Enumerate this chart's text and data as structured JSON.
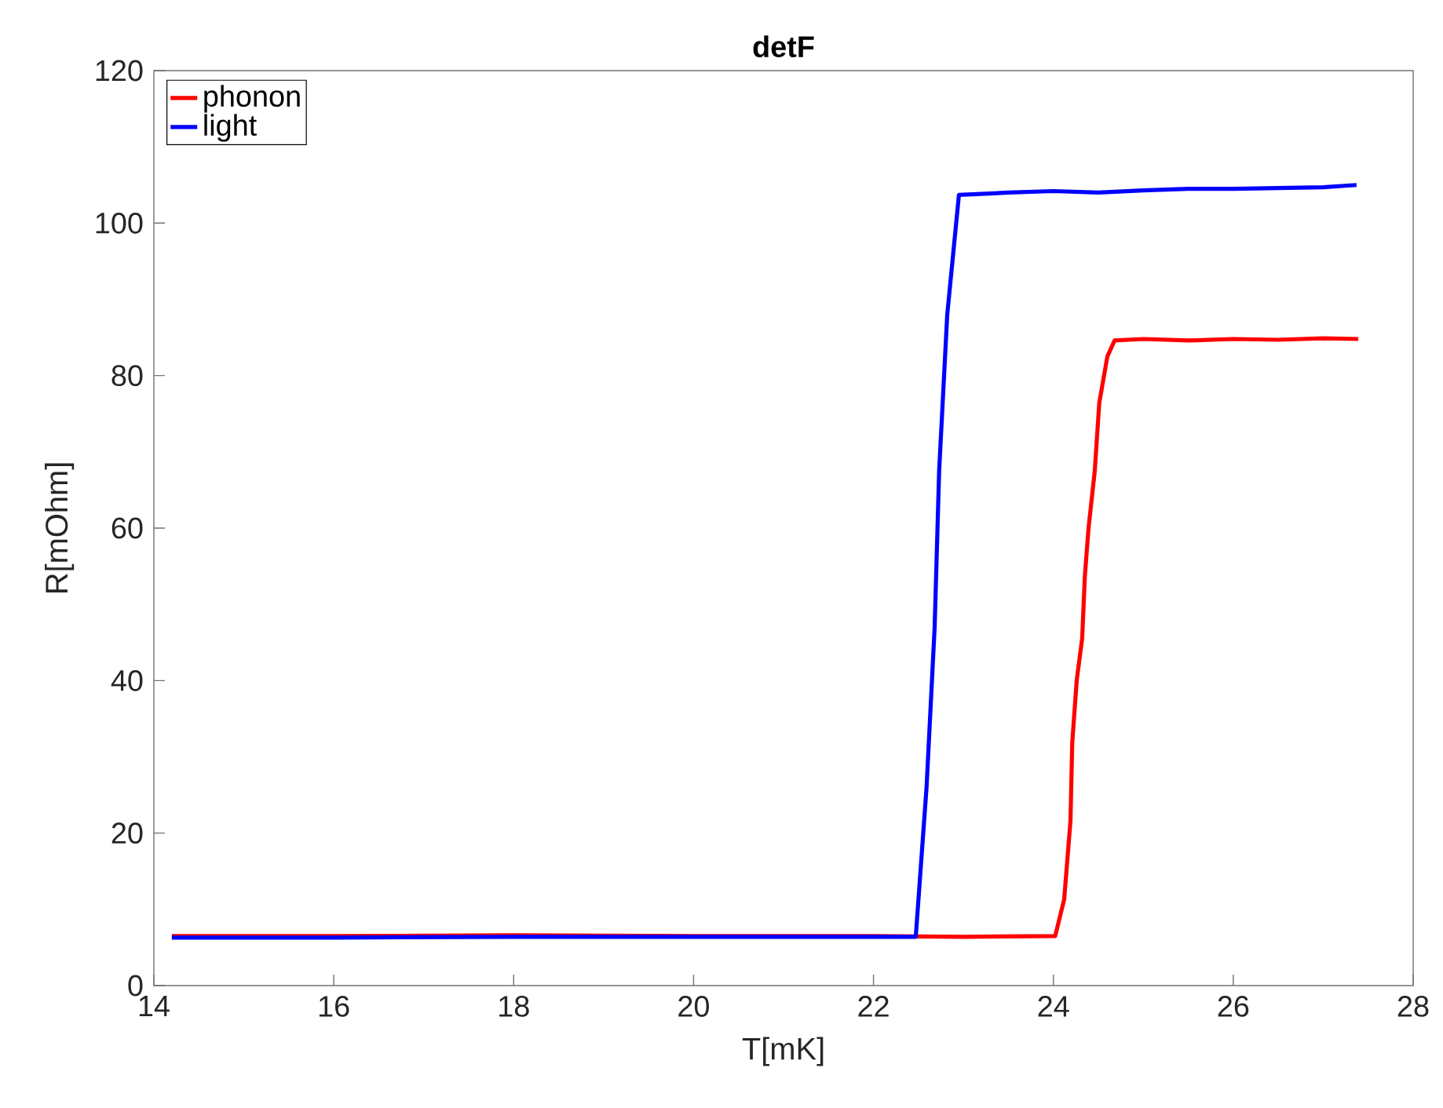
{
  "chart_data": {
    "type": "line",
    "title": "detF",
    "xlabel": "T[mK]",
    "ylabel": "R[mOhm]",
    "xlim": [
      14,
      28
    ],
    "ylim": [
      0,
      120
    ],
    "xticks": [
      14,
      16,
      18,
      20,
      22,
      24,
      26,
      28
    ],
    "yticks": [
      0,
      20,
      40,
      60,
      80,
      100,
      120
    ],
    "grid": false,
    "legend": "top left",
    "line_style": "solid",
    "marker": "none",
    "series": [
      {
        "name": "phonon",
        "color": "#ff0000",
        "x": [
          14.2,
          16,
          18,
          20,
          22,
          23,
          24.02,
          24.12,
          24.19,
          24.21,
          24.26,
          24.32,
          24.35,
          24.39,
          24.46,
          24.51,
          24.6,
          24.68,
          25,
          25.5,
          26,
          26.5,
          27,
          27.39
        ],
        "values": [
          6.5,
          6.5,
          6.6,
          6.5,
          6.5,
          6.4,
          6.5,
          11.3,
          21.6,
          31.9,
          40.1,
          45.5,
          53.7,
          59.9,
          67.5,
          76.4,
          82.5,
          84.6,
          84.8,
          84.6,
          84.8,
          84.7,
          84.9,
          84.8
        ]
      },
      {
        "name": "light",
        "color": "#0000ff",
        "x": [
          14.2,
          16,
          18,
          20,
          22,
          22.47,
          22.59,
          22.68,
          22.73,
          22.82,
          22.95,
          23.5,
          24,
          24.5,
          25,
          25.5,
          26,
          26.5,
          27,
          27.37
        ],
        "values": [
          6.3,
          6.3,
          6.4,
          6.4,
          6.4,
          6.4,
          26,
          47,
          67.5,
          88,
          103.7,
          104,
          104.2,
          104,
          104.3,
          104.5,
          104.5,
          104.6,
          104.7,
          105
        ]
      }
    ]
  }
}
